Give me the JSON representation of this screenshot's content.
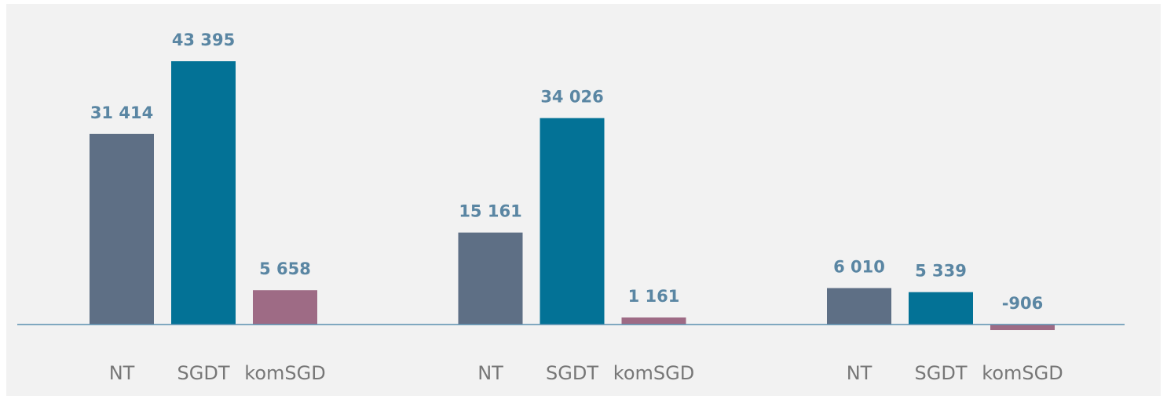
{
  "chart_data": {
    "type": "bar",
    "categories": [
      null,
      null,
      null
    ],
    "series": [
      {
        "name": "NT",
        "color": "#5e6f85",
        "values": [
          31414,
          15161,
          6010
        ],
        "value_labels": [
          "31 414",
          "15 161",
          "6 010"
        ]
      },
      {
        "name": "SGDT",
        "color": "#037296",
        "values": [
          43395,
          34026,
          5339
        ],
        "value_labels": [
          "43 395",
          "34 026",
          "5 339"
        ]
      },
      {
        "name": "komSGD",
        "color": "#9e6b85",
        "values": [
          5658,
          1161,
          -906
        ],
        "value_labels": [
          "5 658",
          "1 161",
          "-906"
        ]
      }
    ],
    "ylim": [
      -5000,
      50000
    ]
  }
}
